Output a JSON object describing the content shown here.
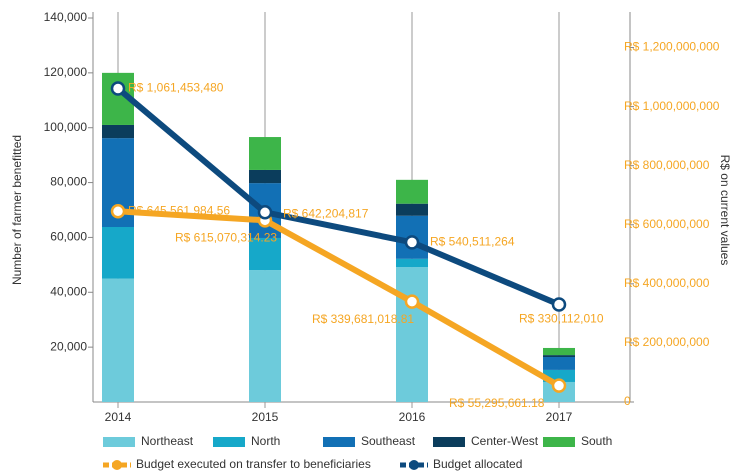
{
  "chart_data": {
    "type": "bar",
    "ylabel": "Number of farmer benefitted",
    "y2label": "R$ on current values",
    "categories": [
      "2014",
      "2015",
      "2016",
      "2017"
    ],
    "series": [
      {
        "name": "Northeast",
        "color": "#6dcbdb",
        "values": [
          45000,
          48100,
          49200,
          7300
        ]
      },
      {
        "name": "North",
        "color": "#16a8c9",
        "values": [
          18800,
          11700,
          3000,
          4400
        ]
      },
      {
        "name": "Southeast",
        "color": "#1270b5",
        "values": [
          32400,
          20000,
          15700,
          4700
        ]
      },
      {
        "name": "Center-West",
        "color": "#0b3d5c",
        "values": [
          4800,
          4800,
          4400,
          700
        ]
      },
      {
        "name": "South",
        "color": "#3db549",
        "values": [
          19000,
          12000,
          8700,
          2600
        ]
      },
      {
        "name": "Budget executed on transfer to beneficiaries",
        "type": "line",
        "axis": "y2",
        "color": "#f5a623",
        "values": [
          645561984.56,
          615070314.23,
          339681018.81,
          55295661.18
        ],
        "value_labels": [
          "R$ 645,561,984,56",
          "R$ 615,070,314.23",
          "R$ 339,681,018.81",
          "R$ 55,295,661.18"
        ]
      },
      {
        "name": "Budget allocated",
        "type": "line",
        "axis": "y2",
        "color": "#0d4a7e",
        "values": [
          1061453480,
          642204817,
          540511264,
          330112010
        ],
        "value_labels": [
          "R$ 1,061,453,480",
          "R$ 642,204,817",
          "R$ 540,511,264",
          "R$ 330,112,010"
        ]
      }
    ],
    "ylim": [
      0,
      140000
    ],
    "yticks": [
      {
        "value": 20000,
        "label": "20,000"
      },
      {
        "value": 40000,
        "label": "40,000"
      },
      {
        "value": 60000,
        "label": "60,000"
      },
      {
        "value": 80000,
        "label": "80,000"
      },
      {
        "value": 100000,
        "label": "100,000"
      },
      {
        "value": 120000,
        "label": "120,000"
      },
      {
        "value": 140000,
        "label": "140,000"
      }
    ],
    "y2lim": [
      0,
      1300000000
    ],
    "y2ticks": [
      0,
      {
        "value": 200000000,
        "label": "R$ 200,000,000"
      },
      {
        "value": 400000000,
        "label": "R$ 400,000,000"
      },
      {
        "value": 600000000,
        "label": "R$ 600,000,000"
      },
      {
        "value": 800000000,
        "label": "R$ 800,000,000"
      },
      {
        "value": 1000000000,
        "label": "R$ 1,000,000,000"
      },
      {
        "value": 1200000000,
        "label": "R$ 1,200,000,000"
      }
    ]
  }
}
